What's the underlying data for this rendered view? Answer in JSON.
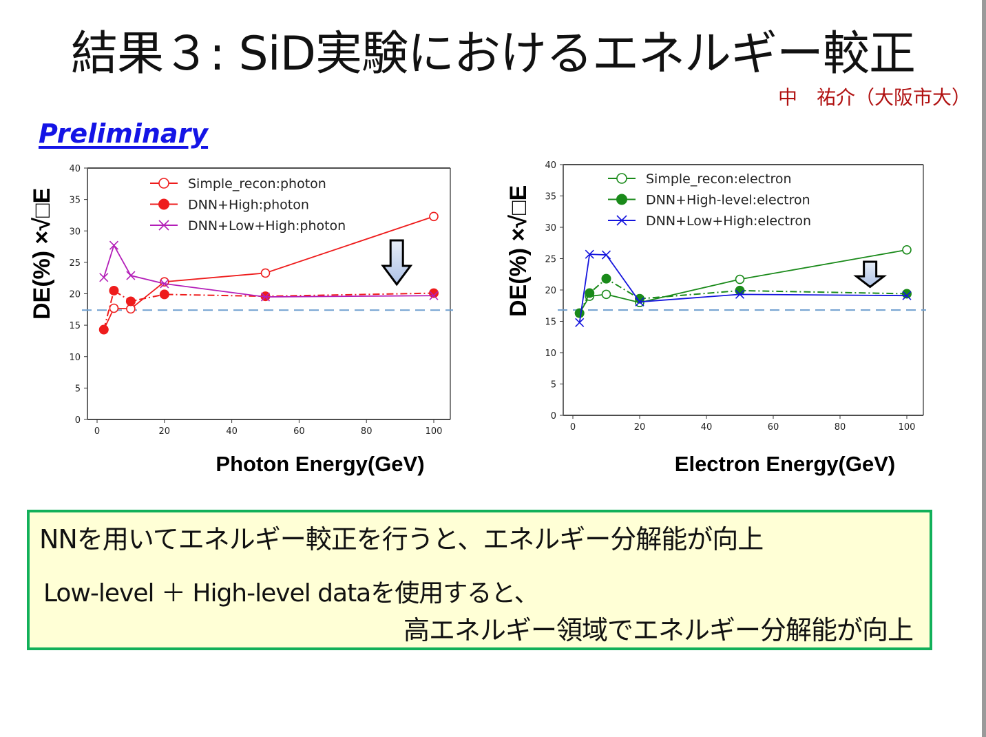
{
  "slide": {
    "title": "結果３: SiD実験におけるエネルギー較正",
    "author": "中　祐介（大阪市大）",
    "preliminary": "Preliminary"
  },
  "summary": {
    "line1": "NNを用いてエネルギー較正を行うと、エネルギー分解能が向上",
    "line2": "Low-level ＋ High-level dataを使用すると、",
    "line3": "高エネルギー領域でエネルギー分解能が向上"
  },
  "chart_data": [
    {
      "type": "line",
      "ylabel": "DE(%) ×√□E",
      "xlabel": "Photon Energy(GeV)",
      "xlim": [
        -3,
        105
      ],
      "ylim": [
        0,
        40
      ],
      "xticks": [
        "0",
        "20",
        "40",
        "60",
        "80",
        "100"
      ],
      "yticks": [
        "0",
        "5",
        "10",
        "15",
        "20",
        "25",
        "30",
        "35",
        "40"
      ],
      "reference_line": 17.4,
      "reference_color": "#6f9fcf",
      "arrow_at": {
        "x": 89,
        "y_top": 28.5,
        "y_bottom": 21.5
      },
      "legend_position": "top-center",
      "series": [
        {
          "name": "Simple_recon:photon",
          "color": "#ee1c1c",
          "marker": "open-circle",
          "line": "solid",
          "x": [
            2,
            5,
            10,
            20,
            50,
            100
          ],
          "y": [
            14.3,
            17.7,
            17.6,
            21.9,
            23.3,
            32.3
          ]
        },
        {
          "name": "DNN+High:photon",
          "color": "#ee1c1c",
          "marker": "filled-circle",
          "line": "dashdot",
          "x": [
            2,
            5,
            10,
            20,
            50,
            100
          ],
          "y": [
            14.3,
            20.5,
            18.8,
            19.9,
            19.6,
            20.1
          ]
        },
        {
          "name": "DNN+Low+High:photon",
          "color": "#b31eb8",
          "marker": "x",
          "line": "solid",
          "x": [
            2,
            5,
            10,
            20,
            50,
            100
          ],
          "y": [
            22.6,
            27.7,
            22.9,
            21.6,
            19.5,
            19.7
          ]
        }
      ]
    },
    {
      "type": "line",
      "ylabel": "DE(%) ×√□E",
      "xlabel": "Electron Energy(GeV)",
      "xlim": [
        -3,
        105
      ],
      "ylim": [
        0,
        40
      ],
      "xticks": [
        "0",
        "20",
        "40",
        "60",
        "80",
        "100"
      ],
      "yticks": [
        "0",
        "5",
        "10",
        "15",
        "20",
        "25",
        "30",
        "35",
        "40"
      ],
      "reference_line": 16.8,
      "reference_color": "#6f9fcf",
      "arrow_at": {
        "x": 89,
        "y_top": 24.5,
        "y_bottom": 20.5
      },
      "legend_position": "top-center",
      "series": [
        {
          "name": "Simple_recon:electron",
          "color": "#1a8a1a",
          "marker": "open-circle",
          "line": "solid",
          "x": [
            2,
            5,
            10,
            20,
            50,
            100
          ],
          "y": [
            16.3,
            19.0,
            19.3,
            18.0,
            21.7,
            26.4
          ]
        },
        {
          "name": "DNN+High-level:electron",
          "color": "#1a8a1a",
          "marker": "filled-circle",
          "line": "dashdot",
          "x": [
            2,
            5,
            10,
            20,
            50,
            100
          ],
          "y": [
            16.3,
            19.5,
            21.8,
            18.6,
            19.9,
            19.4
          ]
        },
        {
          "name": "DNN+Low+High:electron",
          "color": "#1414dd",
          "marker": "x",
          "line": "solid",
          "x": [
            2,
            5,
            10,
            20,
            50,
            100
          ],
          "y": [
            14.8,
            25.7,
            25.6,
            18.1,
            19.3,
            19.1
          ]
        }
      ]
    }
  ]
}
